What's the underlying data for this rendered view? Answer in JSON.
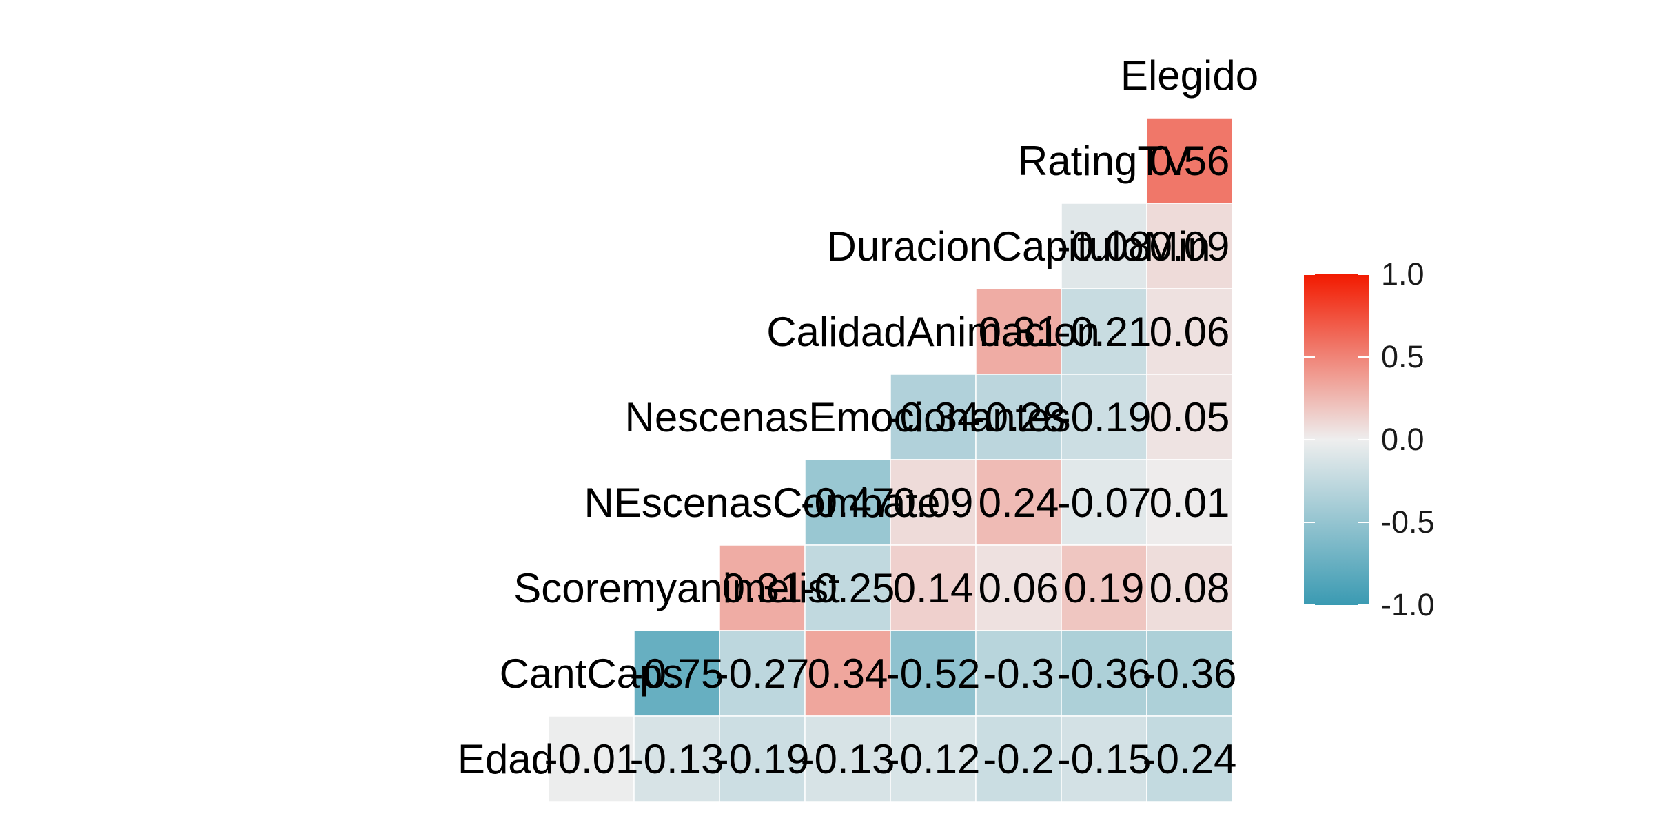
{
  "chart_data": {
    "type": "heatmap",
    "variables": [
      "Elegido",
      "RatingTV",
      "DuracionCapituloMin",
      "CalidadAnimacion",
      "NescenasEmocionantes",
      "NEscenasCombate",
      "Scoremyanimelist",
      "CantCaps",
      "Edad"
    ],
    "cells": [
      {
        "row": "RatingTV",
        "col": "Elegido",
        "value": 0.56,
        "label": "0.56"
      },
      {
        "row": "DuracionCapituloMin",
        "col": "RatingTV",
        "value": -0.08,
        "label": "-0.08"
      },
      {
        "row": "DuracionCapituloMin",
        "col": "Elegido",
        "value": 0.09,
        "label": "0.09"
      },
      {
        "row": "CalidadAnimacion",
        "col": "DuracionCapituloMin",
        "value": 0.31,
        "label": "0.31"
      },
      {
        "row": "CalidadAnimacion",
        "col": "RatingTV",
        "value": -0.21,
        "label": "-0.21"
      },
      {
        "row": "CalidadAnimacion",
        "col": "Elegido",
        "value": 0.06,
        "label": "0.06"
      },
      {
        "row": "NescenasEmocionantes",
        "col": "CalidadAnimacion",
        "value": -0.34,
        "label": "-0.34"
      },
      {
        "row": "NescenasEmocionantes",
        "col": "DuracionCapituloMin",
        "value": -0.28,
        "label": "-0.28"
      },
      {
        "row": "NescenasEmocionantes",
        "col": "RatingTV",
        "value": -0.19,
        "label": "-0.19"
      },
      {
        "row": "NescenasEmocionantes",
        "col": "Elegido",
        "value": 0.05,
        "label": "0.05"
      },
      {
        "row": "NEscenasCombate",
        "col": "NescenasEmocionantes",
        "value": -0.47,
        "label": "-0.47"
      },
      {
        "row": "NEscenasCombate",
        "col": "CalidadAnimacion",
        "value": 0.09,
        "label": "0.09"
      },
      {
        "row": "NEscenasCombate",
        "col": "DuracionCapituloMin",
        "value": 0.24,
        "label": "0.24"
      },
      {
        "row": "NEscenasCombate",
        "col": "RatingTV",
        "value": -0.07,
        "label": "-0.07"
      },
      {
        "row": "NEscenasCombate",
        "col": "Elegido",
        "value": 0.01,
        "label": "0.01"
      },
      {
        "row": "Scoremyanimelist",
        "col": "NEscenasCombate",
        "value": 0.31,
        "label": "0.31"
      },
      {
        "row": "Scoremyanimelist",
        "col": "NescenasEmocionantes",
        "value": -0.25,
        "label": "-0.25"
      },
      {
        "row": "Scoremyanimelist",
        "col": "CalidadAnimacion",
        "value": 0.14,
        "label": "0.14"
      },
      {
        "row": "Scoremyanimelist",
        "col": "DuracionCapituloMin",
        "value": 0.06,
        "label": "0.06"
      },
      {
        "row": "Scoremyanimelist",
        "col": "RatingTV",
        "value": 0.19,
        "label": "0.19"
      },
      {
        "row": "Scoremyanimelist",
        "col": "Elegido",
        "value": 0.08,
        "label": "0.08"
      },
      {
        "row": "CantCaps",
        "col": "Scoremyanimelist",
        "value": -0.75,
        "label": "-0.75"
      },
      {
        "row": "CantCaps",
        "col": "NEscenasCombate",
        "value": -0.27,
        "label": "-0.27"
      },
      {
        "row": "CantCaps",
        "col": "NescenasEmocionantes",
        "value": 0.34,
        "label": "0.34"
      },
      {
        "row": "CantCaps",
        "col": "CalidadAnimacion",
        "value": -0.52,
        "label": "-0.52"
      },
      {
        "row": "CantCaps",
        "col": "DuracionCapituloMin",
        "value": -0.3,
        "label": "-0.3"
      },
      {
        "row": "CantCaps",
        "col": "RatingTV",
        "value": -0.36,
        "label": "-0.36"
      },
      {
        "row": "CantCaps",
        "col": "Elegido",
        "value": -0.36,
        "label": "-0.36"
      },
      {
        "row": "Edad",
        "col": "CantCaps",
        "value": -0.01,
        "label": "-0.01"
      },
      {
        "row": "Edad",
        "col": "Scoremyanimelist",
        "value": -0.13,
        "label": "-0.13"
      },
      {
        "row": "Edad",
        "col": "NEscenasCombate",
        "value": -0.19,
        "label": "-0.19"
      },
      {
        "row": "Edad",
        "col": "NescenasEmocionantes",
        "value": -0.13,
        "label": "-0.13"
      },
      {
        "row": "Edad",
        "col": "CalidadAnimacion",
        "value": -0.12,
        "label": "-0.12"
      },
      {
        "row": "Edad",
        "col": "DuracionCapituloMin",
        "value": -0.2,
        "label": "-0.2"
      },
      {
        "row": "Edad",
        "col": "RatingTV",
        "value": -0.15,
        "label": "-0.15"
      },
      {
        "row": "Edad",
        "col": "Elegido",
        "value": -0.24,
        "label": "-0.24"
      }
    ],
    "legend": {
      "placement": "right",
      "scale_min": -1.0,
      "scale_max": 1.0,
      "ticks": [
        1.0,
        0.5,
        0.0,
        -0.5,
        -1.0
      ],
      "tick_labels": [
        "1.0",
        "0.5",
        "0.0",
        "-0.5",
        "-1.0"
      ]
    },
    "colors": {
      "low": "#3a9ab2",
      "mid": "#eeeeee",
      "high": "#f21a00",
      "cell_border": "#ffffff",
      "label": "#000000"
    },
    "value_range": [
      -1,
      1
    ]
  }
}
